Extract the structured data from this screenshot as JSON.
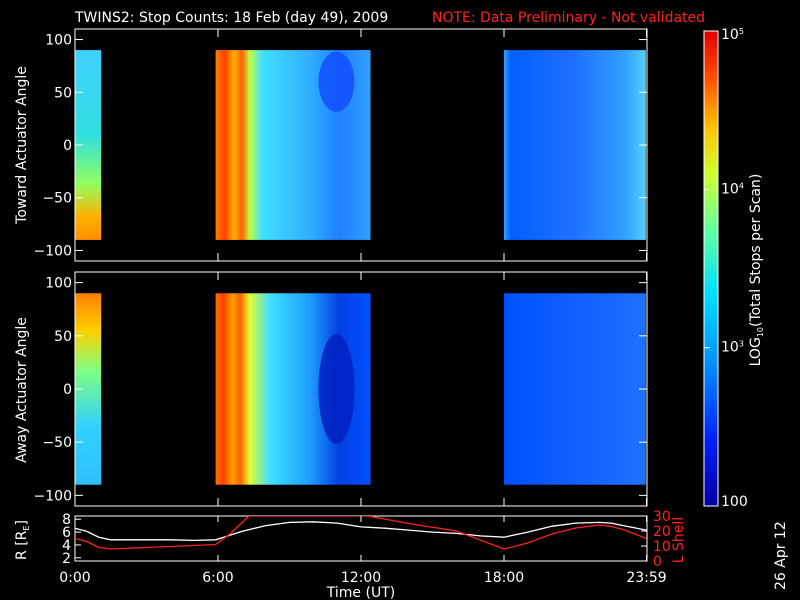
{
  "header": {
    "title": "TWINS2: Stop Counts: 18 Feb (day  49), 2009",
    "note": "NOTE: Data Preliminary - Not validated"
  },
  "footer": {
    "stamp": "26 Apr 12"
  },
  "colors": {
    "background": "#000000",
    "axes": "#ffffff",
    "lshell_line": "#ff2020",
    "radius_line": "#ffffff",
    "colormap": [
      "#0000a0",
      "#0040ff",
      "#00c0ff",
      "#40ffc0",
      "#c0ff40",
      "#ffc000",
      "#ff4000",
      "#d00000"
    ]
  },
  "chart_data": [
    {
      "type": "heatmap",
      "panel": "top",
      "ylabel": "Toward Actuator Angle",
      "ylim": [
        -110,
        110
      ],
      "yticks": [
        -100,
        -50,
        0,
        50,
        100
      ],
      "ytick_labels": [
        "−100",
        "−50",
        "0",
        "50",
        "100"
      ],
      "xlim": [
        0,
        24
      ],
      "data_blocks_hours": [
        [
          0.0,
          1.1
        ],
        [
          5.9,
          12.4
        ],
        [
          18.0,
          23.95
        ]
      ],
      "angle_range": [
        -90,
        90
      ]
    },
    {
      "type": "heatmap",
      "panel": "bottom",
      "ylabel": "Away Actuator Angle",
      "ylim": [
        -110,
        110
      ],
      "yticks": [
        -100,
        -50,
        0,
        50,
        100
      ],
      "ytick_labels": [
        "−100",
        "−50",
        "0",
        "50",
        "100"
      ],
      "xlim": [
        0,
        24
      ],
      "data_blocks_hours": [
        [
          0.0,
          1.1
        ],
        [
          5.9,
          12.4
        ],
        [
          18.0,
          23.95
        ]
      ],
      "angle_range": [
        -90,
        90
      ]
    },
    {
      "type": "line",
      "panel": "orbit",
      "xlabel": "Time (UT)",
      "xlim": [
        0,
        24
      ],
      "xtick_labels": [
        "0:00",
        "6:00",
        "12:00",
        "18:00",
        "23:59"
      ],
      "xtick_values": [
        0,
        6,
        12,
        18,
        23.98
      ],
      "ylabel_left": "R [R",
      "ylabel_left_sub": "E",
      "ylabel_left_end": "]",
      "ylim_left": [
        1.5,
        8.5
      ],
      "yticks_left": [
        2,
        4,
        6,
        8
      ],
      "ylabel_right": "L Shell",
      "ylim_right": [
        0,
        30
      ],
      "yticks_right": [
        0,
        10,
        20,
        30
      ],
      "series": [
        {
          "axis": "left",
          "x": [
            0,
            0.5,
            1.0,
            1.5,
            2,
            3,
            4,
            5,
            5.9,
            6.5,
            7,
            8,
            9,
            10,
            11,
            12,
            13,
            14,
            15,
            16,
            17,
            18,
            19,
            20,
            21,
            22,
            22.5,
            23,
            23.98
          ],
          "values": [
            6.6,
            6.1,
            5.2,
            4.8,
            4.8,
            4.8,
            4.8,
            4.7,
            4.8,
            5.5,
            6.1,
            7.0,
            7.5,
            7.6,
            7.4,
            6.8,
            6.6,
            6.3,
            6.0,
            5.8,
            5.4,
            5.2,
            6.0,
            6.9,
            7.4,
            7.5,
            7.4,
            7.0,
            6.3
          ]
        },
        {
          "axis": "right",
          "x": [
            0,
            0.5,
            1.0,
            1.5,
            3,
            4.5,
            5.9,
            6.5,
            7.3,
            12.3,
            14,
            16,
            18,
            19,
            20,
            21,
            22,
            22.5,
            23,
            23.98
          ],
          "values": [
            15,
            13,
            9,
            8,
            9,
            10,
            11,
            18,
            30,
            30,
            25,
            20,
            8,
            12,
            18,
            22,
            24,
            23,
            21,
            15
          ]
        }
      ]
    },
    {
      "type": "heatmap",
      "panel": "colorbar",
      "ylabel": "LOG",
      "ylabel_sub": "10",
      "ylabel_end": "(Total Stops per Scan)",
      "scale": "log",
      "range": [
        100,
        100000
      ],
      "tick_values": [
        100,
        1000,
        10000,
        100000
      ],
      "tick_labels": [
        {
          "base": "100",
          "exp": ""
        },
        {
          "base": "10",
          "exp": "3"
        },
        {
          "base": "10",
          "exp": "4"
        },
        {
          "base": "10",
          "exp": "5"
        }
      ]
    }
  ]
}
